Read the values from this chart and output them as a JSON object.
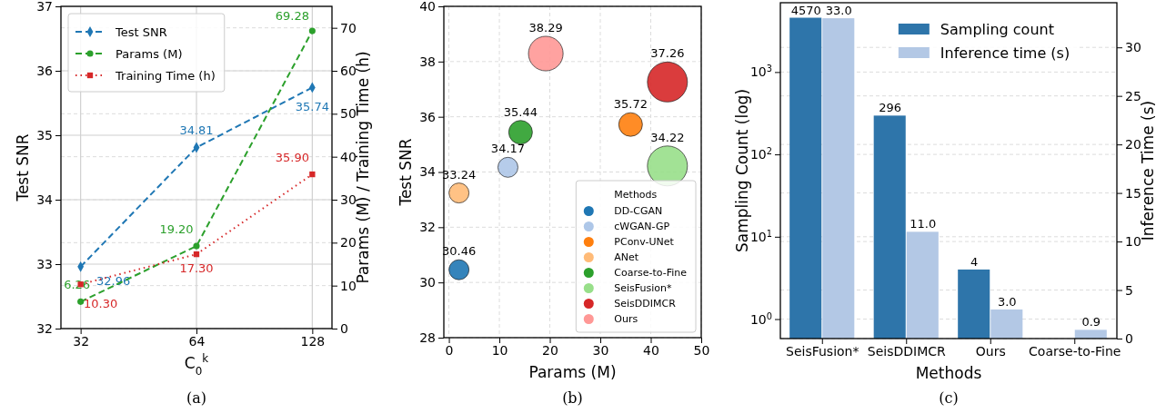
{
  "chart_data": [
    {
      "type": "line",
      "categories": [
        "32",
        "64",
        "128"
      ],
      "xlabel": "C$_{0}$$^{k}$",
      "ylabel": "Test SNR",
      "y2label": "Params (M) / Training Time (h)",
      "ylim": [
        32,
        37
      ],
      "yticks": [
        32,
        33,
        34,
        35,
        36,
        37
      ],
      "y2lim": [
        0,
        75
      ],
      "y2ticks": [
        0,
        10,
        20,
        30,
        40,
        50,
        60,
        70
      ],
      "grid": true,
      "legend": "top left",
      "annotations": [
        "(a)"
      ],
      "series": [
        {
          "name": "Test SNR",
          "color": "#1f77b4",
          "values": [
            32.96,
            34.81,
            35.74
          ],
          "value_labels": [
            "32.96",
            "34.81",
            "35.74"
          ],
          "marker": "diamond",
          "line_style": "dashed"
        },
        {
          "name": "Params (M)",
          "color": "#2ca02c",
          "values": [
            6.26,
            19.2,
            69.28
          ],
          "value_labels": [
            "6.26",
            "19.20",
            "69.28"
          ],
          "marker": "circle",
          "line_style": "dashed",
          "axis": "y2"
        },
        {
          "name": "Training Time (h)",
          "color": "#d62728",
          "values": [
            10.3,
            17.3,
            35.9
          ],
          "value_labels": [
            "10.30",
            "17.30",
            "35.90"
          ],
          "marker": "square",
          "line_style": "dotted",
          "axis": "y2"
        }
      ]
    },
    {
      "type": "bubble",
      "xlabel": "Params (M)",
      "ylabel": "Test SNR",
      "xlim": [
        -1,
        50
      ],
      "xticks": [
        0,
        10,
        20,
        30,
        40,
        50
      ],
      "ylim": [
        28,
        40
      ],
      "yticks": [
        28,
        30,
        32,
        34,
        36,
        38,
        40
      ],
      "grid": true,
      "legend": "bottom right",
      "legend_title": "Methods",
      "data_labels": true,
      "annotations": [
        "(b)"
      ],
      "series": [
        {
          "name": "DD-CGAN",
          "color": "#1f77b4",
          "x": [
            2
          ],
          "values": [
            30.46
          ],
          "sizes": [
            0.25
          ]
        },
        {
          "name": "cWGAN-GP",
          "color": "#aec7e8",
          "x": [
            11.7
          ],
          "values": [
            34.17
          ],
          "sizes": [
            0.25
          ]
        },
        {
          "name": "PConv-UNet",
          "color": "#ff7f0e",
          "x": [
            36
          ],
          "values": [
            35.72
          ],
          "sizes": [
            0.35
          ]
        },
        {
          "name": "ANet",
          "color": "#ffbb78",
          "x": [
            2
          ],
          "values": [
            33.24
          ],
          "sizes": [
            0.25
          ]
        },
        {
          "name": "Coarse-to-Fine",
          "color": "#2ca02c",
          "x": [
            14.2
          ],
          "values": [
            35.44
          ],
          "sizes": [
            0.35
          ]
        },
        {
          "name": "SeisFusion*",
          "color": "#98df8a",
          "x": [
            43.3
          ],
          "values": [
            34.22
          ],
          "sizes": [
            1
          ]
        },
        {
          "name": "SeisDDIMCR",
          "color": "#d62728",
          "x": [
            43.3
          ],
          "values": [
            37.26
          ],
          "sizes": [
            1
          ]
        },
        {
          "name": "Ours",
          "color": "#ff9896",
          "x": [
            19.2
          ],
          "values": [
            38.29
          ],
          "sizes": [
            0.75
          ]
        }
      ]
    },
    {
      "type": "bar",
      "categories": [
        "SeisFusion*",
        "SeisDDIMCR",
        "Ours",
        "Coarse-to-Fine"
      ],
      "xlabel": "Methods",
      "ylabel": "Sampling Count (log)",
      "y2label": "Inference Time (s)",
      "log": "y",
      "ylim": [
        0.58,
        6950
      ],
      "yticks": [
        {
          "value": 1,
          "label": "10$^{0}$"
        },
        {
          "value": 10,
          "label": "10$^{1}$"
        },
        {
          "value": 100,
          "label": "10$^{2}$"
        },
        {
          "value": 1000,
          "label": "10$^{3}$"
        }
      ],
      "y2lim": [
        0,
        34.6
      ],
      "y2ticks": [
        0,
        5,
        10,
        15,
        20,
        25,
        30
      ],
      "grid": "y",
      "legend": "top",
      "annotations": [
        "(c)"
      ],
      "series": [
        {
          "name": "Sampling count",
          "color": "#2e75aa",
          "values": [
            4570,
            296,
            4,
            null
          ],
          "value_labels": [
            "4570",
            "296",
            "4",
            null
          ]
        },
        {
          "name": "Inference time (s)",
          "color": "#b3c8e5",
          "values": [
            33,
            11,
            3,
            0.9
          ],
          "value_labels": [
            "33.0",
            "11.0",
            "3.0",
            "0.9"
          ],
          "axis": "y2"
        }
      ]
    }
  ]
}
